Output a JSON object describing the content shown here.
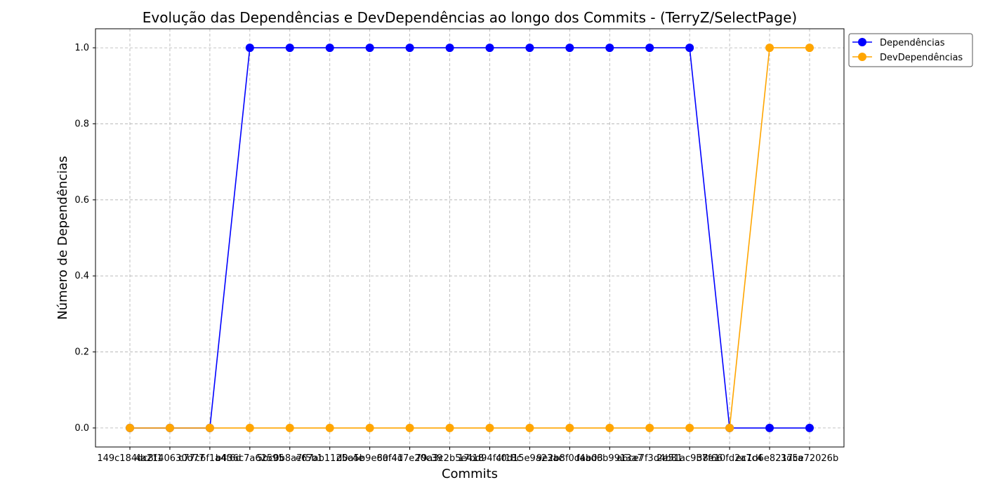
{
  "chart_data": {
    "type": "line",
    "title": "Evolução das Dependências e DevDependências ao longo dos Commits - (TerryZ/SelectPage)",
    "xlabel": "Commits",
    "ylabel": "Número de Dependências",
    "grid": true,
    "legend_position": "outside top-right",
    "ylim": [
      -0.05,
      1.05
    ],
    "yticks": [
      "0.0",
      "0.2",
      "0.4",
      "0.6",
      "0.8",
      "1.0"
    ],
    "x_tick_labels_overlap": true,
    "categories": [
      "149c184dc8f1",
      "4a2140630d77",
      "c77c6f1a4f6d",
      "b436c7a62595",
      "5bc0b8a7f5b1",
      "e67ab1125c4e",
      "d0a5b9e60f41",
      "8af4d7e20c39",
      "79a3c2b5e418",
      "17bd94f4f18c",
      "c0d15e9a23ac",
      "9e2b8f0dab03",
      "f4ad6b9913a7",
      "a6ce7f3d4b81",
      "2e51ac9b7f66",
      "38e10fd2a7c4",
      "ec1d6e8217ca",
      "3d5e72026b"
    ],
    "series": [
      {
        "name": "Dependências",
        "color": "#0000ff",
        "values": [
          0,
          0,
          0,
          1,
          1,
          1,
          1,
          1,
          1,
          1,
          1,
          1,
          1,
          1,
          1,
          0,
          0,
          0
        ]
      },
      {
        "name": "DevDependências",
        "color": "#ffa500",
        "values": [
          0,
          0,
          0,
          0,
          0,
          0,
          0,
          0,
          0,
          0,
          0,
          0,
          0,
          0,
          0,
          0,
          1,
          1
        ]
      }
    ]
  }
}
